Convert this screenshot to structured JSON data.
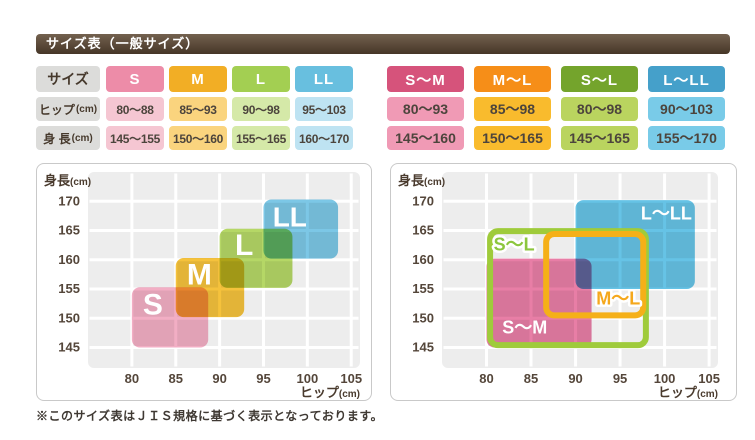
{
  "title": "サイズ表（一般サイズ）",
  "footer": "※このサイズ表はＪＩＳ規格に基づく表示となっております。",
  "tables": {
    "left": {
      "corner": "サイズ",
      "row_labels": [
        {
          "main": "ヒップ",
          "unit": "(cm)"
        },
        {
          "main": "身 長",
          "unit": "(cm)"
        }
      ],
      "columns": [
        {
          "size": "S",
          "header_bg": "#ed8ca8",
          "cell_bg": "#f5c6d2",
          "hip": "80～88",
          "height": "145～155"
        },
        {
          "size": "M",
          "header_bg": "#f2ae25",
          "cell_bg": "#fad47e",
          "hip": "85～93",
          "height": "150～160"
        },
        {
          "size": "L",
          "header_bg": "#a3cf52",
          "cell_bg": "#d5e9a8",
          "hip": "90～98",
          "height": "155～165"
        },
        {
          "size": "LL",
          "header_bg": "#68bfdf",
          "cell_bg": "#bee3f2",
          "hip": "95～103",
          "height": "160～170"
        }
      ]
    },
    "right": {
      "columns": [
        {
          "size": "S～M",
          "header_bg": "#d6537b",
          "cell_bg": "#f09ab5",
          "hip": "80～93",
          "height": "145～160"
        },
        {
          "size": "M～L",
          "header_bg": "#f68e18",
          "cell_bg": "#f9bb2d",
          "hip": "85～98",
          "height": "150～165"
        },
        {
          "size": "S～L",
          "header_bg": "#74a42c",
          "cell_bg": "#bad45f",
          "hip": "80～98",
          "height": "145～165"
        },
        {
          "size": "L～LL",
          "header_bg": "#45a0ca",
          "cell_bg": "#79cbe8",
          "hip": "90～103",
          "height": "155～170"
        }
      ]
    }
  },
  "chart_data": [
    {
      "id": "left",
      "type": "area",
      "xlabel": {
        "main": "ヒップ",
        "unit": "(cm)"
      },
      "ylabel": {
        "main": "身長",
        "unit": "(cm)"
      },
      "xticks": [
        80,
        85,
        90,
        95,
        100,
        105
      ],
      "yticks": [
        145,
        150,
        155,
        160,
        165,
        170
      ],
      "xlim": [
        75,
        106
      ],
      "ylim": [
        141.5,
        175
      ],
      "grid": true,
      "plot_bg": "#ededed",
      "grid_color": "#ffffff",
      "regions": [
        {
          "name": "S",
          "hip": [
            80,
            88
          ],
          "height": [
            145,
            155
          ],
          "style": "fill",
          "color": "#f2aec4",
          "draw": {
            "x0": 80,
            "x1": 88.7,
            "y0": 145,
            "y1": 155.3
          },
          "label": {
            "text": "S",
            "x": 82.4,
            "y": 152.3,
            "color": "#ffffff",
            "size": 30
          }
        },
        {
          "name": "M",
          "hip": [
            85,
            93
          ],
          "height": [
            150,
            160
          ],
          "style": "fill",
          "color": "#f5c23c",
          "draw": {
            "x0": 85,
            "x1": 92.8,
            "y0": 150.2,
            "y1": 160.3
          },
          "label": {
            "text": "M",
            "x": 87.7,
            "y": 157.4,
            "color": "#ffffff",
            "size": 30
          }
        },
        {
          "name": "L",
          "hip": [
            90,
            98
          ],
          "height": [
            155,
            165
          ],
          "style": "fill",
          "color": "#b5d766",
          "draw": {
            "x0": 90,
            "x1": 98.3,
            "y0": 155.2,
            "y1": 165.3
          },
          "label": {
            "text": "L",
            "x": 92.8,
            "y": 162.4,
            "color": "#ffffff",
            "size": 30
          }
        },
        {
          "name": "LL",
          "hip": [
            95,
            103
          ],
          "height": [
            160,
            170
          ],
          "style": "fill",
          "color": "#7cc7e6",
          "draw": {
            "x0": 95,
            "x1": 103.5,
            "y0": 160.2,
            "y1": 170.3
          },
          "label": {
            "text": "LL",
            "x": 98,
            "y": 167.3,
            "color": "#ffffff",
            "size": 28
          }
        }
      ]
    },
    {
      "id": "right",
      "type": "area",
      "xlabel": {
        "main": "ヒップ",
        "unit": "(cm)"
      },
      "ylabel": {
        "main": "身長",
        "unit": "(cm)"
      },
      "xticks": [
        80,
        85,
        90,
        95,
        100,
        105
      ],
      "yticks": [
        145,
        150,
        155,
        160,
        165,
        170
      ],
      "xlim": [
        75,
        106
      ],
      "ylim": [
        141.5,
        175
      ],
      "grid": true,
      "plot_bg": "#ededed",
      "grid_color": "#ffffff",
      "regions": [
        {
          "name": "S～M",
          "hip": [
            80,
            93
          ],
          "height": [
            145,
            160
          ],
          "style": "fill",
          "color": "#e87ea6",
          "draw": {
            "x0": 80,
            "x1": 91.8,
            "y0": 145,
            "y1": 160.2
          },
          "label": {
            "text": "S～M",
            "x": 84.3,
            "y": 148.4,
            "color": "#ffffff",
            "size": 18
          }
        },
        {
          "name": "L～LL",
          "hip": [
            90,
            103
          ],
          "height": [
            155,
            170
          ],
          "style": "fill",
          "color": "#66c3e6",
          "draw": {
            "x0": 90,
            "x1": 103.4,
            "y0": 155,
            "y1": 170.2
          },
          "label": {
            "text": "L～LL",
            "x": 100.2,
            "y": 167.9,
            "color": "#ffffff",
            "size": 18
          }
        },
        {
          "name": "S～L",
          "hip": [
            80,
            98
          ],
          "height": [
            145,
            165
          ],
          "style": "outline",
          "color": "#9fcb3b",
          "stroke_width": 6,
          "draw": {
            "x0": 80.4,
            "x1": 97.9,
            "y0": 145.4,
            "y1": 164.9
          },
          "label": {
            "text": "S～L",
            "x": 83.1,
            "y": 162.6,
            "color": "#8cc63e",
            "size": 18,
            "glow": true
          }
        },
        {
          "name": "M～L",
          "hip": [
            85,
            98
          ],
          "height": [
            150,
            165
          ],
          "style": "outline",
          "color": "#f5b018",
          "stroke_width": 6,
          "draw": {
            "x0": 86.7,
            "x1": 97.6,
            "y0": 150.5,
            "y1": 164.4
          },
          "label": {
            "text": "M～L",
            "x": 94.8,
            "y": 153.4,
            "color": "#f5a81c",
            "size": 18,
            "glow": true
          }
        }
      ]
    }
  ],
  "colors": {
    "title_bar_top": "#73614f",
    "title_bar_bottom": "#463627",
    "label_cell_bg": "#dcdcda",
    "cell_text": "#4c443c",
    "tick_text": "#54463a",
    "panel_border": "#c9c9c9",
    "plot_bg": "#ededed"
  }
}
